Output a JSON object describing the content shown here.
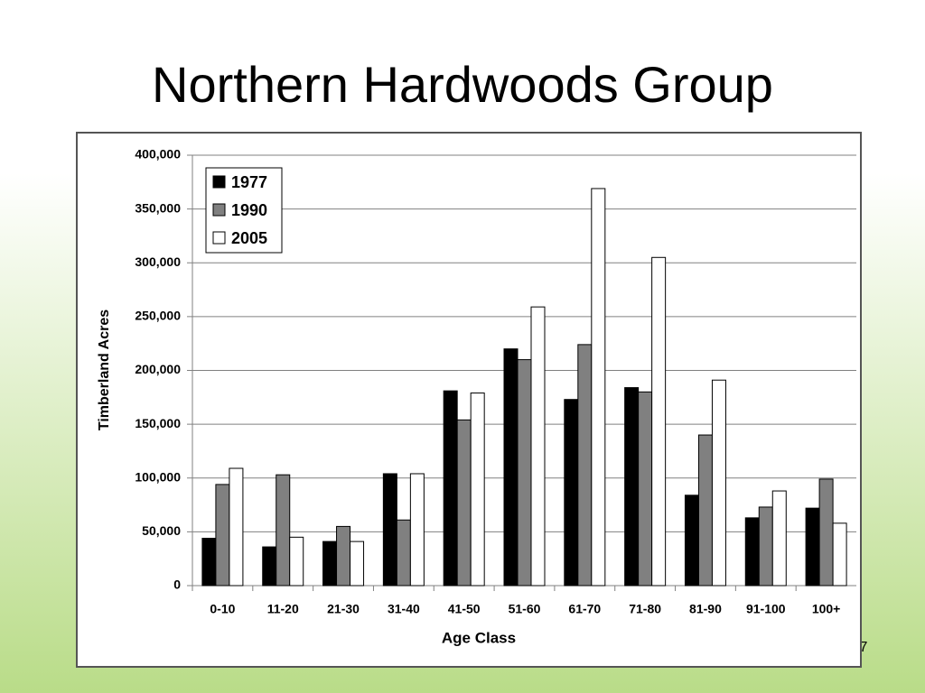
{
  "slide_number": "7",
  "chart_data": {
    "type": "bar",
    "title": "Northern Hardwoods Group",
    "x_label": "Age Class",
    "y_label": "Timberland Acres",
    "categories": [
      "0-10",
      "11-20",
      "21-30",
      "31-40",
      "41-50",
      "51-60",
      "61-70",
      "71-80",
      "81-90",
      "91-100",
      "100+"
    ],
    "series": [
      {
        "name": "1977",
        "color": "#000000",
        "values": [
          44000,
          36000,
          41000,
          104000,
          181000,
          220000,
          173000,
          184000,
          84000,
          63000,
          72000
        ]
      },
      {
        "name": "1990",
        "color": "#808080",
        "values": [
          94000,
          103000,
          55000,
          61000,
          154000,
          210000,
          224000,
          180000,
          140000,
          73000,
          99000
        ]
      },
      {
        "name": "2005",
        "color": "#ffffff",
        "values": [
          109000,
          45000,
          41000,
          104000,
          179000,
          259000,
          369000,
          305000,
          191000,
          88000,
          58000
        ]
      }
    ],
    "ylim": [
      0,
      400000
    ],
    "yticks": [
      0,
      {
        "value": 50000,
        "label": "50,000"
      },
      {
        "value": 100000,
        "label": "100,000"
      },
      {
        "value": 150000,
        "label": "150,000"
      },
      {
        "value": 200000,
        "label": "200,000"
      },
      {
        "value": 250000,
        "label": "250,000"
      },
      {
        "value": 300000,
        "label": "300,000"
      },
      {
        "value": 350000,
        "label": "350,000"
      },
      {
        "value": 400000,
        "label": "400,000"
      }
    ],
    "grid": true,
    "legend": "top-left"
  }
}
